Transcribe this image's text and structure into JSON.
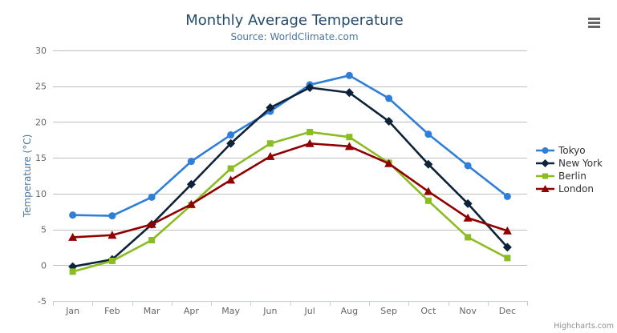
{
  "title": {
    "text": "Monthly Average Temperature"
  },
  "subtitle": {
    "text": "Source: WorldClimate.com"
  },
  "credits": {
    "text": "Highcharts.com"
  },
  "export_menu": {
    "icon": "hamburger-icon"
  },
  "chart_data": {
    "type": "line",
    "title": "Monthly Average Temperature",
    "subtitle": "Source: WorldClimate.com",
    "categories": [
      "Jan",
      "Feb",
      "Mar",
      "Apr",
      "May",
      "Jun",
      "Jul",
      "Aug",
      "Sep",
      "Oct",
      "Nov",
      "Dec"
    ],
    "xlabel": "",
    "ylabel": "Temperature (°C)",
    "ylim": [
      -5,
      30
    ],
    "ytick_step": 5,
    "grid": true,
    "legend_position": "right",
    "series": [
      {
        "name": "Tokyo",
        "color": "#2f7ed8",
        "marker": "circle",
        "values": [
          7.0,
          6.9,
          9.5,
          14.5,
          18.2,
          21.5,
          25.2,
          26.5,
          23.3,
          18.3,
          13.9,
          9.6
        ]
      },
      {
        "name": "New York",
        "color": "#0d233a",
        "marker": "diamond",
        "values": [
          -0.2,
          0.8,
          5.7,
          11.3,
          17.0,
          22.0,
          24.8,
          24.1,
          20.1,
          14.1,
          8.6,
          2.5
        ]
      },
      {
        "name": "Berlin",
        "color": "#8bbc21",
        "marker": "square",
        "values": [
          -0.9,
          0.6,
          3.5,
          8.4,
          13.5,
          17.0,
          18.6,
          17.9,
          14.3,
          9.0,
          3.9,
          1.0
        ]
      },
      {
        "name": "London",
        "color": "#910000",
        "marker": "triangle",
        "values": [
          3.9,
          4.2,
          5.7,
          8.5,
          11.9,
          15.2,
          17.0,
          16.6,
          14.2,
          10.3,
          6.6,
          4.8
        ]
      }
    ],
    "colors": {
      "grid": "#C0C0C0",
      "axis_line": "#C0D0E0",
      "axis_labels": "#666666",
      "title": "#274b6d",
      "subtitle": "#4d759e",
      "axis_title": "#4d759e",
      "legend_text": "#333333",
      "credits": "#909090",
      "menu_icon": "#666666"
    }
  }
}
